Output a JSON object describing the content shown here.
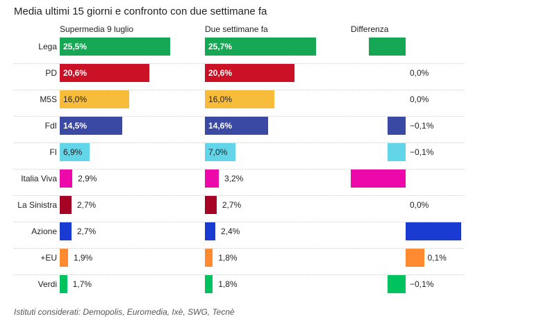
{
  "chart_data": {
    "type": "bar",
    "title": "Media ultimi 15 giorni e confronto con due settimane fa",
    "columns": [
      "Supermedia 9 luglio",
      "Due settimane fa",
      "Differenza"
    ],
    "categories": [
      "Lega",
      "PD",
      "M5S",
      "FdI",
      "FI",
      "Italia Viva",
      "La Sinistra",
      "Azione",
      "+EU",
      "Verdi"
    ],
    "series": [
      {
        "name": "Supermedia 9 luglio",
        "values": [
          25.5,
          20.6,
          16.0,
          14.5,
          6.9,
          2.9,
          2.7,
          2.7,
          1.9,
          1.7
        ],
        "labels": [
          "25,5%",
          "20,6%",
          "16,0%",
          "14,5%",
          "6,9%",
          "2,9%",
          "2,7%",
          "2,7%",
          "1,9%",
          "1,7%"
        ]
      },
      {
        "name": "Due settimane fa",
        "values": [
          25.7,
          20.6,
          16.0,
          14.6,
          7.0,
          3.2,
          2.7,
          2.4,
          1.8,
          1.8
        ],
        "labels": [
          "25,7%",
          "20,6%",
          "16,0%",
          "14,6%",
          "7,0%",
          "3,2%",
          "2,7%",
          "2,4%",
          "1,8%",
          "1,8%"
        ]
      },
      {
        "name": "Differenza",
        "values": [
          -0.2,
          0.0,
          0.0,
          -0.1,
          -0.1,
          -0.3,
          0.0,
          0.3,
          0.1,
          -0.1
        ],
        "labels": [
          "−0,2%",
          "0,0%",
          "0,0%",
          "−0,1%",
          "−0,1%",
          "−0,3%",
          "0,0%",
          "0,3%",
          "0,1%",
          "−0,1%"
        ]
      }
    ],
    "colors": [
      "#16a754",
      "#ca1126",
      "#f7bc3a",
      "#3a49a3",
      "#62d6e8",
      "#ec08a9",
      "#a60425",
      "#1a3bd1",
      "#ff8a30",
      "#00c25f"
    ],
    "dark_label_colors": [
      "#f7bc3a",
      "#62d6e8"
    ],
    "footnote": "Istituti considerati: Demopolis, Euromedia, Ixè, SWG, Tecnè"
  }
}
